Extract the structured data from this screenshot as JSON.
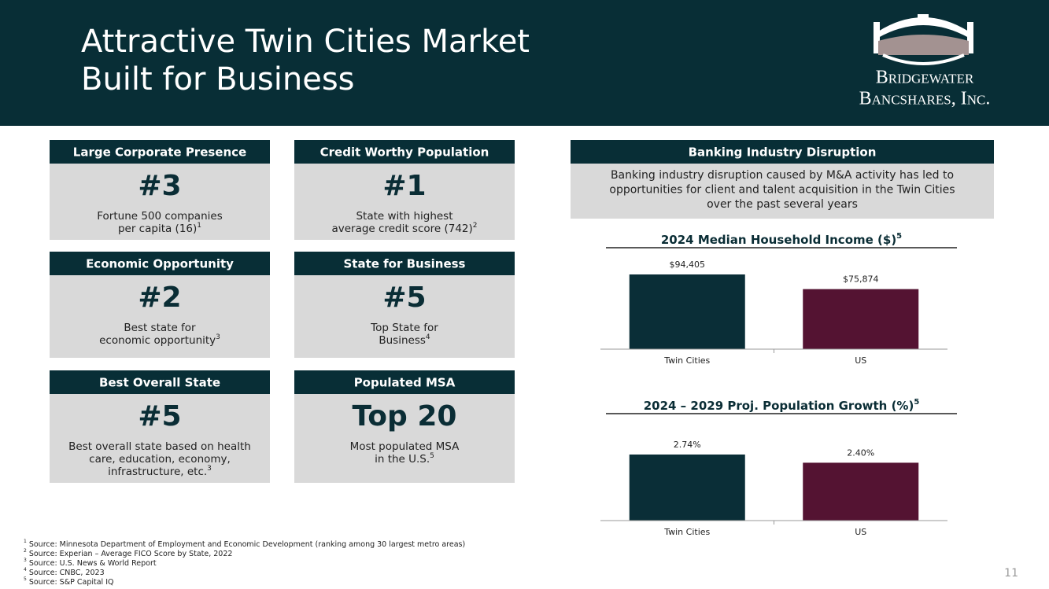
{
  "header": {
    "title_lines": [
      "Attractive Twin Cities Market",
      "Built for Business"
    ],
    "logo_lines": [
      "Bridgewater",
      "Bancshares, Inc."
    ]
  },
  "boxes": [
    {
      "heading": "Large Corporate Presence",
      "rank": "#3",
      "lines": [
        "Fortune 500 companies",
        "per capita (16)"
      ],
      "note": "1"
    },
    {
      "heading": "Credit Worthy Population",
      "rank": "#1",
      "lines": [
        "State with highest",
        "average credit score (742)"
      ],
      "note": "2"
    },
    {
      "heading": "Economic Opportunity",
      "rank": "#2",
      "lines": [
        "Best state for",
        "economic opportunity"
      ],
      "note": "3"
    },
    {
      "heading": "State for Business",
      "rank": "#5",
      "lines": [
        "Top State for",
        "Business"
      ],
      "note": "4"
    },
    {
      "heading": "Best Overall State",
      "rank": "#5",
      "lines": [
        "Best overall state based on health",
        "care, education, economy,",
        "infrastructure, etc."
      ],
      "note": "3"
    },
    {
      "heading": "Populated MSA",
      "rank": "Top 20",
      "lines": [
        "Most populated MSA",
        "in the U.S."
      ],
      "note": "5"
    }
  ],
  "disruption": {
    "heading": "Banking Industry Disruption",
    "lines": [
      "Banking industry disruption caused by M&A activity has led to",
      "opportunities for client and talent acquisition in the Twin Cities",
      "over the past several years"
    ]
  },
  "chart_data": [
    {
      "type": "bar",
      "title": "2024 Median Household Income ($)",
      "title_note": "5",
      "categories": [
        "Twin Cities",
        "US"
      ],
      "values": [
        94405,
        75874
      ],
      "value_labels": [
        "$94,405",
        "$75,874"
      ],
      "colors": [
        "#0a2e37",
        "#541332"
      ]
    },
    {
      "type": "bar",
      "title": "2024 – 2029 Proj. Population Growth (%)",
      "title_note": "5",
      "categories": [
        "Twin Cities",
        "US"
      ],
      "values": [
        2.74,
        2.4
      ],
      "value_labels": [
        "2.74%",
        "2.40%"
      ],
      "colors": [
        "#0a2e37",
        "#541332"
      ]
    }
  ],
  "footnotes": [
    {
      "marker": "1",
      "text": "Source: Minnesota Department of Employment and Economic Development (ranking among 30 largest metro areas)"
    },
    {
      "marker": "2",
      "text": "Source: Experian – Average FICO Score by State, 2022"
    },
    {
      "marker": "3",
      "text": "Source: U.S. News & World Report"
    },
    {
      "marker": "4",
      "text": "Source: CNBC, 2023"
    },
    {
      "marker": "5",
      "text": "Source: S&P Capital IQ"
    }
  ],
  "page_number": "11"
}
